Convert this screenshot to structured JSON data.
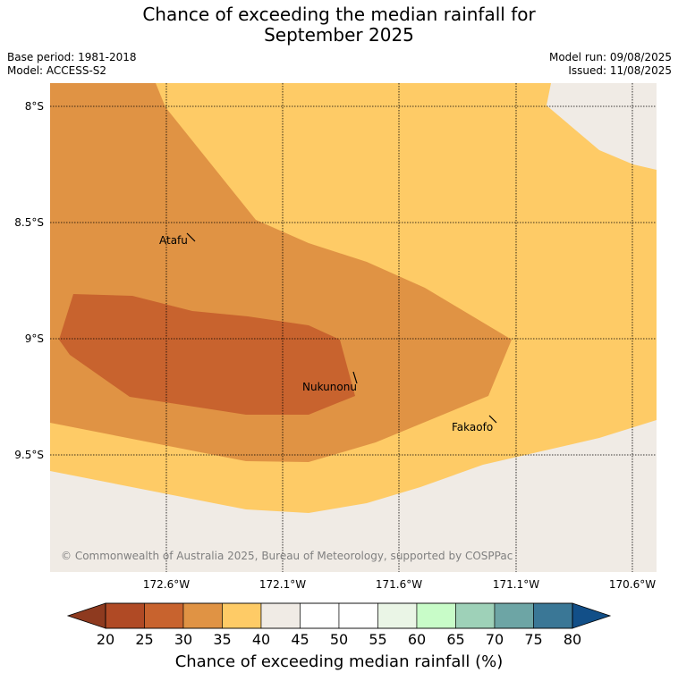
{
  "header": {
    "title_line1": "Chance of exceeding the median rainfall for",
    "title_line2": "September 2025",
    "base_period": "Base period: 1981-2018",
    "model": "Model: ACCESS-S2",
    "model_run": "Model run: 09/08/2025",
    "issued": "Issued: 11/08/2025"
  },
  "map": {
    "lat_labels": [
      "8°S",
      "8.5°S",
      "9°S",
      "9.5°S"
    ],
    "lon_labels": [
      "172.6°W",
      "172.1°W",
      "171.6°W",
      "171.1°W",
      "170.6°W"
    ],
    "places": [
      "Atafu",
      "Nukunonu",
      "Fakaofo"
    ],
    "copyright": "© Commonwealth of Australia 2025, Bureau of Meteorology, supported by COSPPac",
    "colors": {
      "band_25_30": "#c8632e",
      "band_30_35": "#e09344",
      "band_35_40": "#fecb66",
      "band_40_45": "#f0ebe5"
    }
  },
  "colorbar": {
    "ticks": [
      "20",
      "25",
      "30",
      "35",
      "40",
      "45",
      "50",
      "55",
      "60",
      "65",
      "70",
      "75",
      "80"
    ],
    "under_color": "#8e3a1f",
    "over_color": "#124f88",
    "colors": [
      "#b04a25",
      "#c8632e",
      "#e09344",
      "#fecb66",
      "#f0ebe5",
      "#ffffff",
      "#ffffff",
      "#eaf5e6",
      "#c8fcc8",
      "#9ed1b8",
      "#6da5a5",
      "#3a7796"
    ],
    "label": "Chance of exceeding median rainfall (%)"
  }
}
